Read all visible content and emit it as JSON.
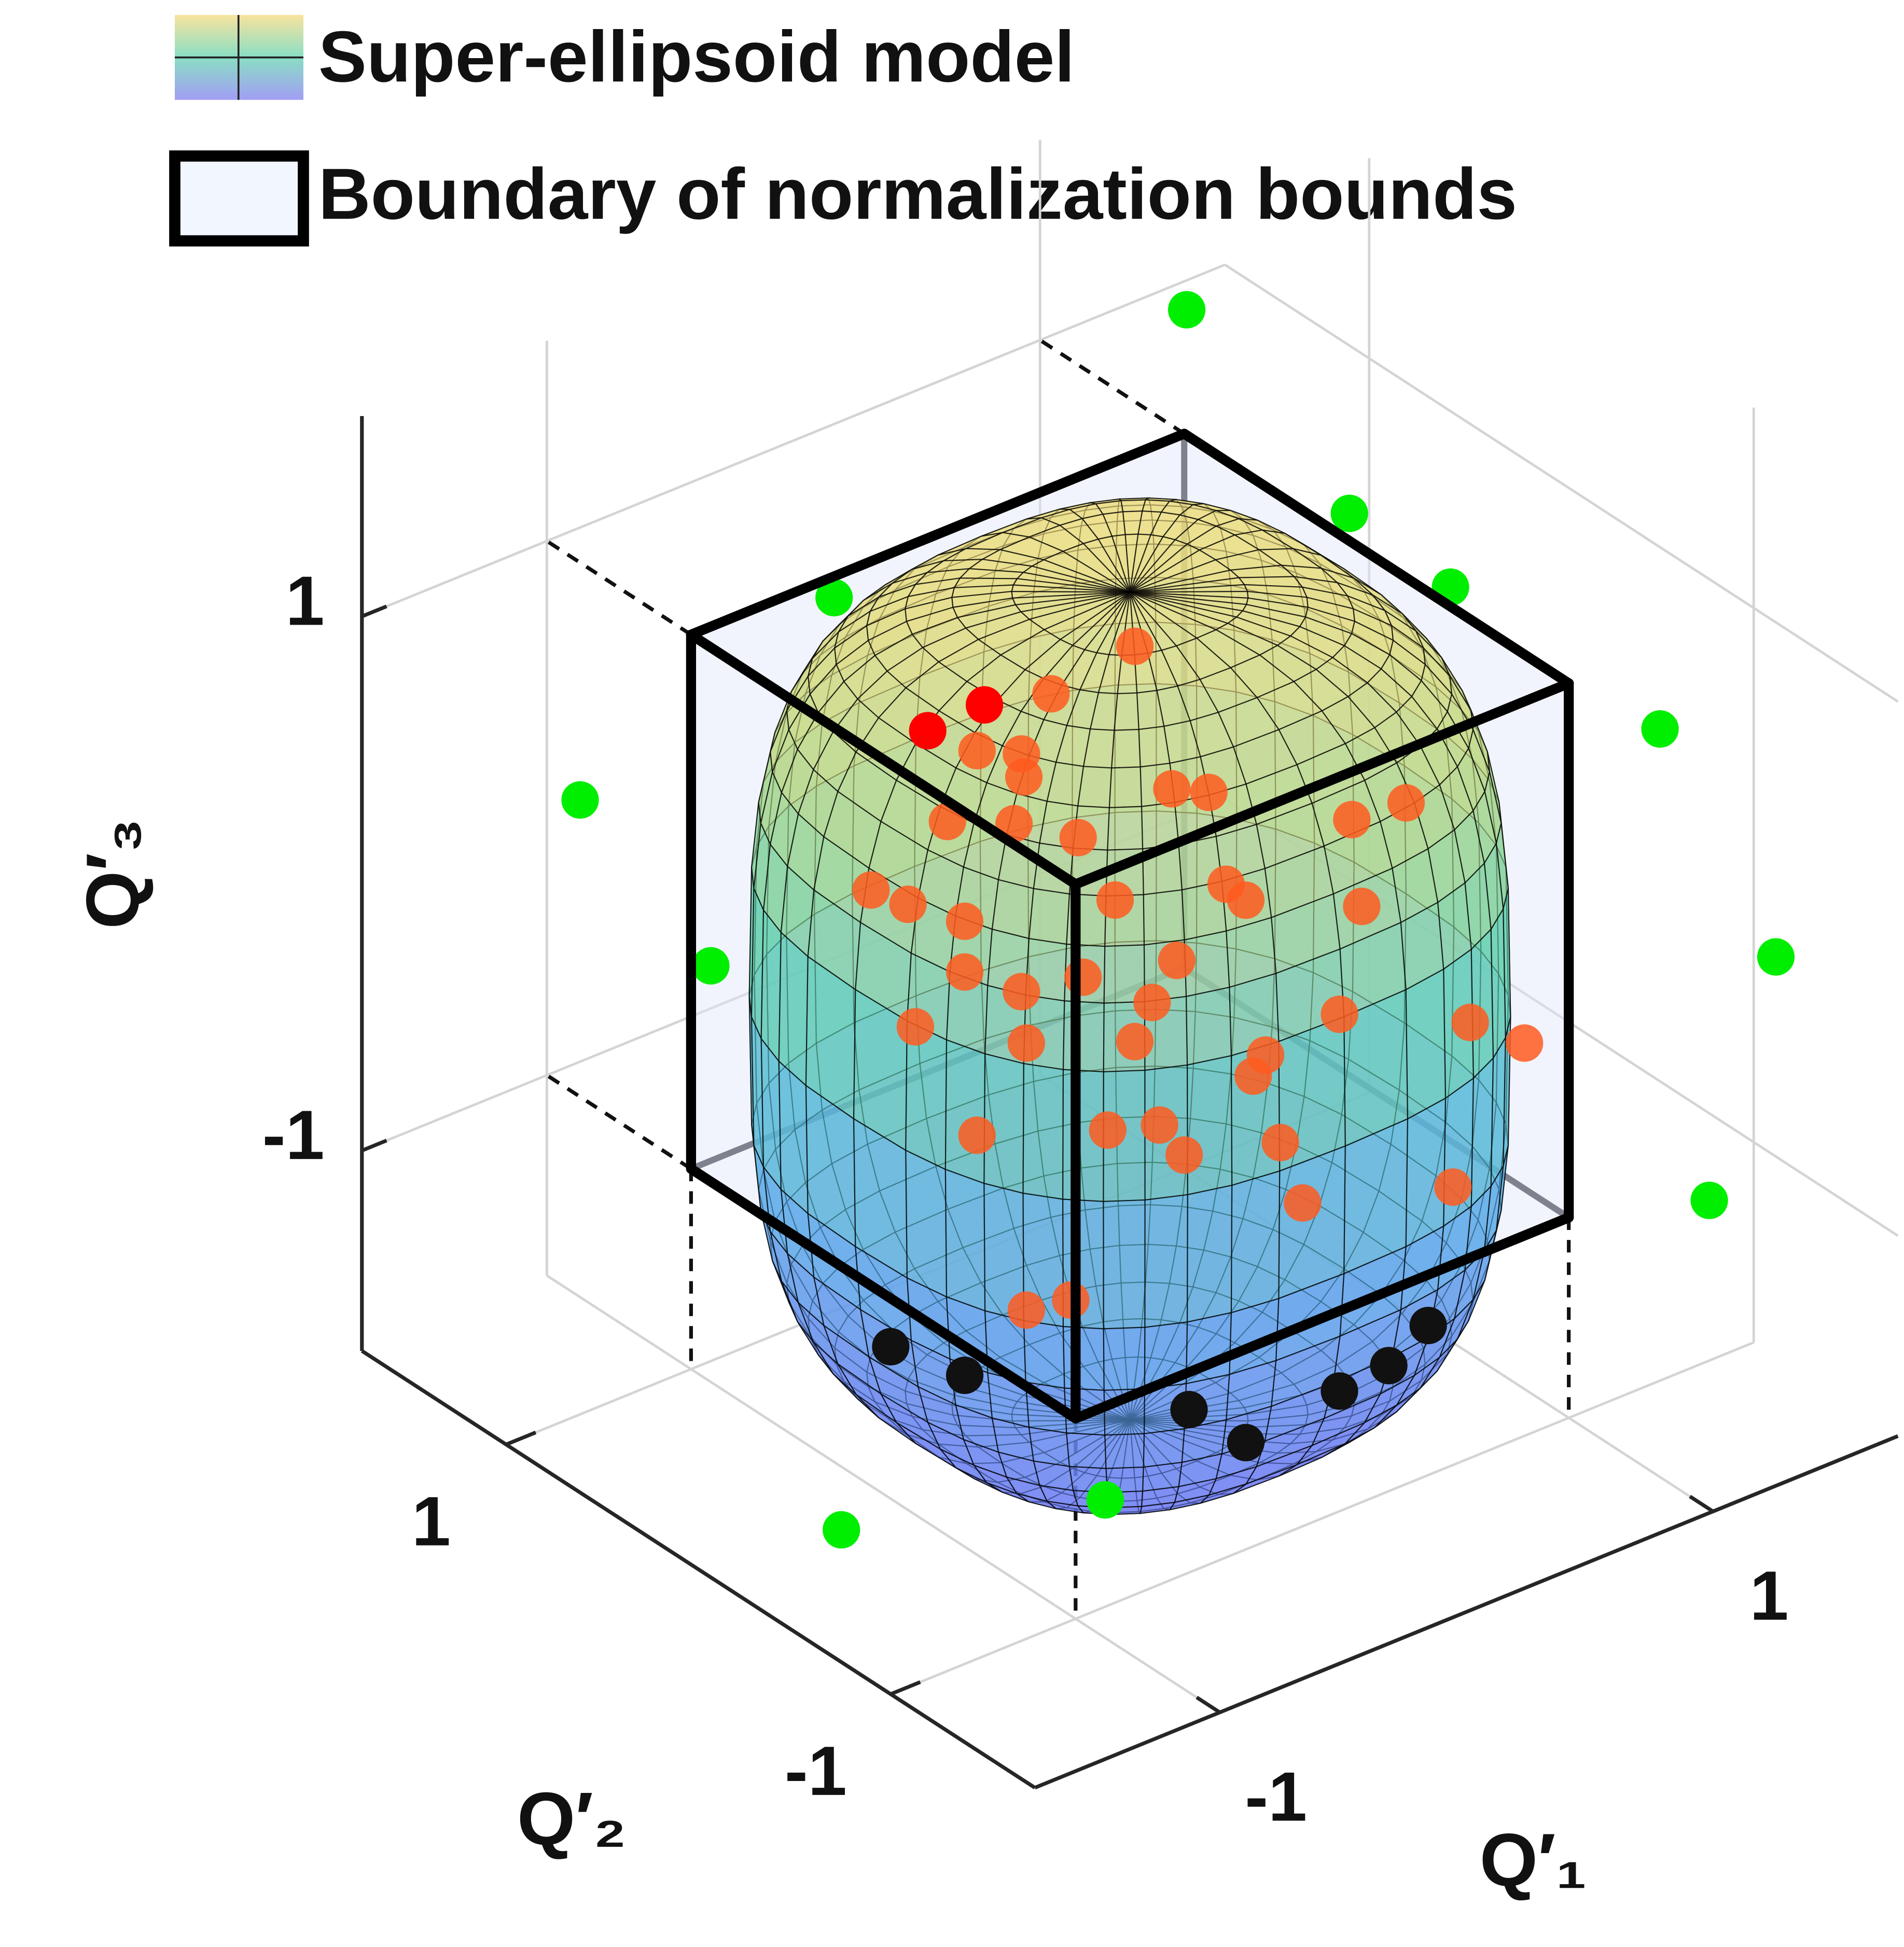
{
  "chart_data": {
    "type": "scatter3d",
    "legend": [
      "Super-ellipsoid model",
      "Boundary of normalization bounds"
    ],
    "xlabel": "Q′₁",
    "ylabel": "Q′₂",
    "zlabel": "Q′₃",
    "xlim": [
      -1.75,
      1.75
    ],
    "ylim": [
      -1.75,
      1.75
    ],
    "zlim": [
      -1.75,
      1.75
    ],
    "xticks": [
      -1,
      1
    ],
    "yticks": [
      -1,
      1
    ],
    "zticks": [
      -1,
      1
    ],
    "grid": true,
    "series": [
      {
        "color": "#00ee00",
        "x": [
          1.4,
          1.28,
          1.3,
          1.37,
          1.45,
          1.18,
          -0.03,
          -1.06,
          -0.92,
          -1.56,
          -0.88
        ],
        "y": [
          1.5,
          0.5,
          0,
          -1,
          -1.5,
          -1.5,
          1.5,
          1.5,
          1,
          -0.5,
          -1
        ],
        "z": [
          1.08,
          0.83,
          0.78,
          0.69,
          0.04,
          -0.77,
          0.54,
          0.17,
          -0.27,
          -1.44,
          -1.35
        ]
      },
      {
        "color": "#ff5a1e",
        "x": [
          0.02,
          -0.32,
          -0.62,
          -0.44,
          -0.43,
          0.17,
          0.32,
          0.9,
          1.12,
          -0.74,
          -0.47,
          -0.21,
          -1.05,
          -0.9,
          -0.67,
          -0.06,
          0.39,
          0.47,
          0.94,
          -0.67,
          -0.44,
          -0.19,
          0.19,
          0.09,
          0.85,
          1.38,
          -0.87,
          -0.42,
          0.02,
          0.55,
          0.5,
          1.6,
          -0.62,
          -0.09,
          0.12,
          0.22,
          0.61,
          1.31,
          0.7,
          -0.42,
          -0.24
        ],
        "y": [
          0,
          0,
          0,
          0,
          0,
          0,
          0,
          0,
          0,
          0,
          0,
          0,
          0,
          0,
          0,
          0,
          0,
          0,
          0,
          0,
          0,
          0,
          0,
          0,
          0,
          0,
          0,
          0,
          0,
          0,
          0,
          0,
          0,
          0,
          0,
          0,
          0,
          0,
          0,
          0,
          0
        ],
        "z": [
          1.04,
          0.99,
          0.89,
          0.81,
          0.72,
          0.45,
          0.38,
          0.06,
          0.04,
          0.67,
          0.56,
          0.41,
          0.53,
          0.42,
          0.27,
          0.12,
          0.01,
          -0.08,
          -0.28,
          0.08,
          -0.08,
          -0.12,
          -0.2,
          -0.32,
          -0.65,
          -0.88,
          -0.05,
          -0.28,
          -0.44,
          -0.69,
          -0.75,
          -1.04,
          -0.55,
          -0.73,
          -0.79,
          -0.94,
          -1.04,
          -1.47,
          -1.3,
          -1.28,
          -1.31
        ]
      },
      {
        "color": "#ff0000",
        "x": [
          -0.82,
          -0.59
        ],
        "y": [
          0,
          0
        ],
        "z": [
          1.04,
          1.05
        ]
      },
      {
        "color": "#111111",
        "x": [
          -0.97,
          -0.67,
          -0.54,
          -0.31,
          0.07,
          0.27,
          0.43
        ],
        "y": [
          0,
          0,
          -1,
          -1,
          -1,
          -1,
          -1
        ],
        "z": [
          -1.21,
          -1.43,
          -1.14,
          -1.35,
          -1.3,
          -1.28,
          -1.19
        ]
      }
    ]
  }
}
